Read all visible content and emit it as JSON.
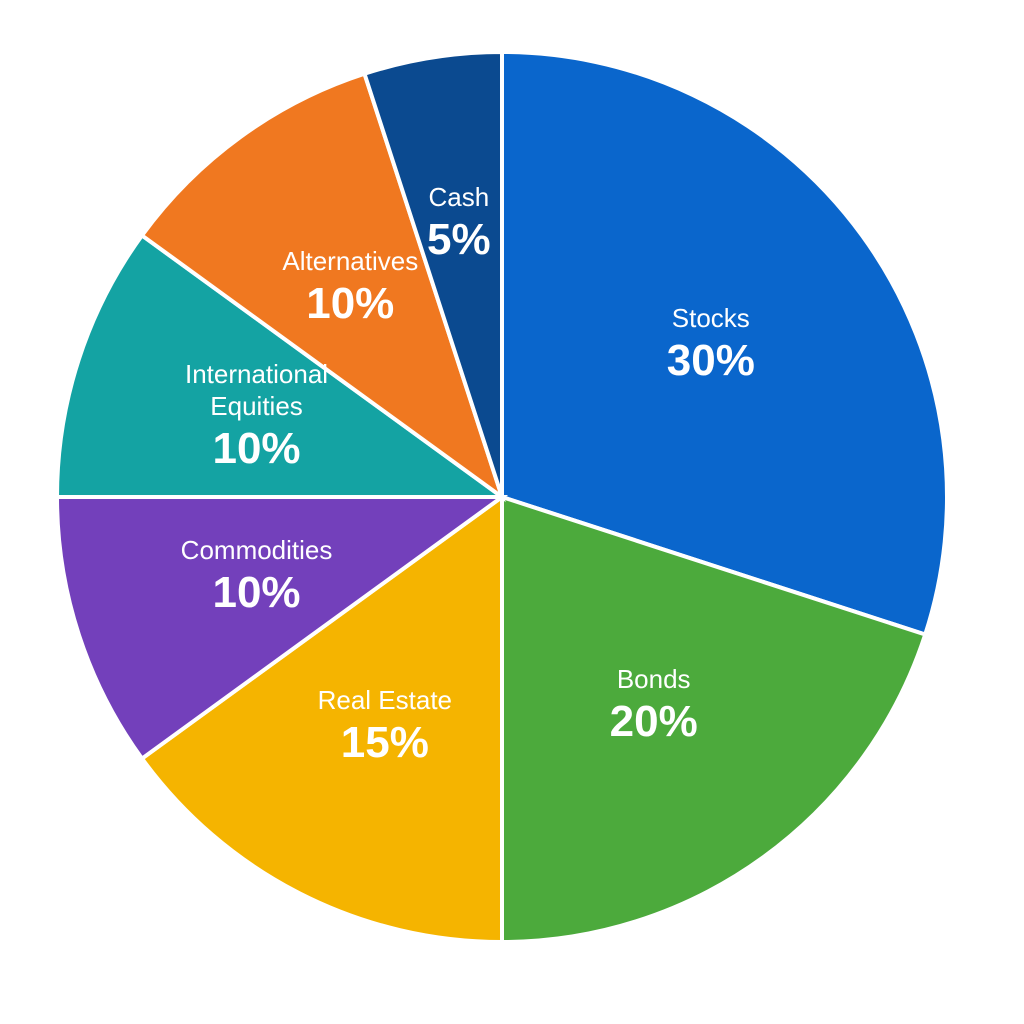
{
  "chart_data": {
    "type": "pie",
    "categories": [
      "Stocks",
      "Bonds",
      "Real Estate",
      "Commodities",
      "International Equities",
      "Alternatives",
      "Cash"
    ],
    "values": [
      30,
      20,
      15,
      10,
      10,
      10,
      5
    ],
    "value_labels": [
      "30%",
      "20%",
      "15%",
      "10%",
      "10%",
      "10%",
      "5%"
    ],
    "colors": [
      "#0a66cc",
      "#4caa3c",
      "#f5b400",
      "#7340bb",
      "#14a3a3",
      "#f07820",
      "#0b4a90"
    ]
  }
}
